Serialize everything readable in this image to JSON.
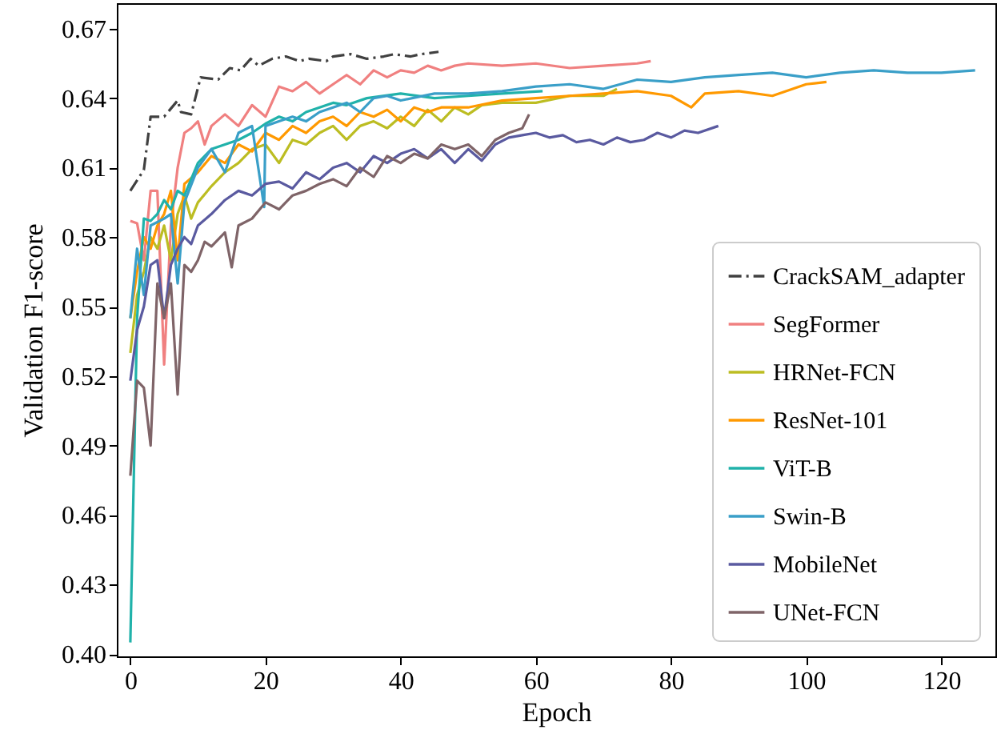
{
  "chart_data": {
    "type": "line",
    "xlabel": "Epoch",
    "ylabel": "Validation F1-score",
    "xlim": [
      -2,
      128
    ],
    "ylim": [
      0.399,
      0.681
    ],
    "xticks": [
      0,
      20,
      40,
      60,
      80,
      100,
      120
    ],
    "yticks": [
      {
        "value": 0.4,
        "label": "0.40"
      },
      0.43,
      0.46,
      0.49,
      0.52,
      0.55,
      0.58,
      0.61,
      0.64,
      0.67
    ],
    "grid": false,
    "legend": "bottom right",
    "marker": "none",
    "series": [
      {
        "name": "CrackSAM_adapter",
        "color": "#404040",
        "line_style": "dashdot",
        "x": [
          0,
          2,
          3,
          5,
          7,
          7.5,
          9,
          10.4,
          13,
          14.7,
          16.3,
          17.8,
          19,
          21,
          23,
          25,
          26.4,
          29,
          30,
          32.6,
          35,
          37.5,
          39,
          41.5,
          43,
          45.6
        ],
        "values": [
          0.6,
          0.609,
          0.632,
          0.632,
          0.639,
          0.634,
          0.633,
          0.649,
          0.648,
          0.653,
          0.652,
          0.657,
          0.654,
          0.657,
          0.658,
          0.656,
          0.657,
          0.656,
          0.658,
          0.659,
          0.657,
          0.658,
          0.659,
          0.658,
          0.659,
          0.66
        ]
      },
      {
        "name": "SegFormer",
        "color": "#f08080",
        "line_style": "solid",
        "x": [
          0,
          1,
          2,
          3,
          4,
          5,
          6,
          7,
          8,
          9,
          10,
          11,
          12,
          14,
          16,
          18,
          20,
          22,
          24,
          26,
          28,
          30,
          32,
          34,
          36,
          38,
          40,
          42,
          44,
          46,
          48,
          50,
          55,
          60,
          65,
          70,
          75,
          77
        ],
        "values": [
          0.587,
          0.586,
          0.57,
          0.6,
          0.6,
          0.525,
          0.585,
          0.61,
          0.625,
          0.627,
          0.63,
          0.62,
          0.628,
          0.633,
          0.628,
          0.637,
          0.632,
          0.645,
          0.643,
          0.647,
          0.642,
          0.646,
          0.65,
          0.646,
          0.652,
          0.649,
          0.652,
          0.651,
          0.654,
          0.652,
          0.654,
          0.655,
          0.654,
          0.655,
          0.653,
          0.654,
          0.655,
          0.656
        ]
      },
      {
        "name": "HRNet-FCN",
        "color": "#bcbd22",
        "line_style": "solid",
        "x": [
          0,
          1,
          2,
          3,
          4,
          5,
          6,
          7,
          8,
          9,
          10,
          12,
          14,
          16,
          18,
          20,
          22,
          24,
          26,
          28,
          30,
          32,
          34,
          36,
          38,
          40,
          42,
          44,
          46,
          48,
          50,
          52,
          55,
          60,
          65,
          70,
          72
        ],
        "values": [
          0.53,
          0.555,
          0.565,
          0.58,
          0.575,
          0.585,
          0.57,
          0.59,
          0.598,
          0.588,
          0.595,
          0.602,
          0.608,
          0.612,
          0.618,
          0.62,
          0.612,
          0.622,
          0.62,
          0.625,
          0.628,
          0.622,
          0.628,
          0.63,
          0.627,
          0.632,
          0.628,
          0.635,
          0.63,
          0.636,
          0.633,
          0.637,
          0.638,
          0.638,
          0.641,
          0.641,
          0.644
        ]
      },
      {
        "name": "ResNet-101",
        "color": "#ff9900",
        "line_style": "solid",
        "x": [
          0,
          1,
          2,
          3,
          4,
          5,
          6,
          7,
          8,
          10,
          12,
          14,
          16,
          18,
          20,
          22,
          24,
          26,
          28,
          30,
          32,
          34,
          36,
          38,
          40,
          42,
          44,
          46,
          50,
          55,
          60,
          65,
          70,
          75,
          80,
          83,
          85,
          90,
          95,
          100,
          103
        ],
        "values": [
          0.545,
          0.565,
          0.58,
          0.575,
          0.585,
          0.59,
          0.6,
          0.57,
          0.603,
          0.608,
          0.615,
          0.612,
          0.62,
          0.617,
          0.625,
          0.622,
          0.628,
          0.625,
          0.63,
          0.632,
          0.628,
          0.634,
          0.632,
          0.635,
          0.63,
          0.636,
          0.634,
          0.636,
          0.636,
          0.639,
          0.64,
          0.641,
          0.642,
          0.643,
          0.641,
          0.636,
          0.642,
          0.643,
          0.641,
          0.646,
          0.647
        ]
      },
      {
        "name": "ViT-B",
        "color": "#20b2aa",
        "line_style": "solid",
        "x": [
          0,
          1,
          2,
          3,
          4,
          5,
          6,
          7,
          8,
          10,
          12,
          14,
          16,
          18,
          20,
          22,
          24,
          26,
          28,
          30,
          32,
          35,
          40,
          45,
          50,
          55,
          61
        ],
        "values": [
          0.405,
          0.545,
          0.588,
          0.587,
          0.59,
          0.596,
          0.592,
          0.6,
          0.598,
          0.612,
          0.618,
          0.62,
          0.622,
          0.625,
          0.629,
          0.632,
          0.63,
          0.634,
          0.636,
          0.638,
          0.637,
          0.64,
          0.642,
          0.64,
          0.641,
          0.642,
          0.643
        ]
      },
      {
        "name": "Swin-B",
        "color": "#3a9fc8",
        "line_style": "solid",
        "x": [
          0,
          1,
          2,
          3,
          5,
          6,
          7,
          8,
          10,
          12,
          14,
          16,
          18,
          19.8,
          20,
          22,
          24,
          26,
          28,
          30,
          32,
          34,
          36,
          38,
          40,
          45,
          50,
          55,
          60,
          65,
          70,
          75,
          80,
          85,
          90,
          95,
          100,
          105,
          110,
          115,
          120,
          125
        ],
        "values": [
          0.545,
          0.575,
          0.555,
          0.585,
          0.588,
          0.59,
          0.56,
          0.595,
          0.61,
          0.618,
          0.608,
          0.625,
          0.628,
          0.593,
          0.628,
          0.63,
          0.632,
          0.63,
          0.634,
          0.636,
          0.638,
          0.634,
          0.64,
          0.641,
          0.639,
          0.642,
          0.642,
          0.643,
          0.645,
          0.646,
          0.644,
          0.648,
          0.647,
          0.649,
          0.65,
          0.651,
          0.649,
          0.651,
          0.652,
          0.651,
          0.651,
          0.652
        ]
      },
      {
        "name": "MobileNet",
        "color": "#5a5aa0",
        "line_style": "solid",
        "x": [
          0,
          1,
          2,
          3,
          4,
          5,
          6,
          7,
          8,
          9,
          10,
          12,
          14,
          16,
          18,
          20,
          22,
          24,
          26,
          28,
          30,
          32,
          34,
          36,
          38,
          40,
          42,
          44,
          46,
          48,
          50,
          52,
          54,
          56,
          58,
          60,
          62,
          64,
          66,
          68,
          70,
          72,
          74,
          76,
          78,
          80,
          82,
          84,
          87
        ],
        "values": [
          0.518,
          0.54,
          0.55,
          0.568,
          0.57,
          0.545,
          0.568,
          0.575,
          0.58,
          0.577,
          0.585,
          0.59,
          0.596,
          0.6,
          0.598,
          0.603,
          0.604,
          0.601,
          0.608,
          0.605,
          0.61,
          0.612,
          0.608,
          0.615,
          0.612,
          0.616,
          0.618,
          0.614,
          0.618,
          0.612,
          0.618,
          0.613,
          0.62,
          0.623,
          0.624,
          0.625,
          0.623,
          0.624,
          0.621,
          0.622,
          0.62,
          0.623,
          0.621,
          0.622,
          0.625,
          0.623,
          0.626,
          0.625,
          0.628
        ]
      },
      {
        "name": "UNet-FCN",
        "color": "#7f6468",
        "line_style": "solid",
        "x": [
          0,
          1,
          2,
          3,
          4,
          5,
          6,
          7,
          8,
          9,
          10,
          11,
          12,
          14,
          15,
          16,
          18,
          20,
          22,
          24,
          26,
          28,
          30,
          32,
          34,
          36,
          38,
          40,
          42,
          44,
          46,
          48,
          50,
          52,
          54,
          56,
          58,
          59
        ],
        "values": [
          0.477,
          0.518,
          0.515,
          0.49,
          0.56,
          0.545,
          0.56,
          0.512,
          0.568,
          0.565,
          0.57,
          0.578,
          0.576,
          0.582,
          0.567,
          0.585,
          0.588,
          0.595,
          0.592,
          0.598,
          0.6,
          0.603,
          0.605,
          0.602,
          0.61,
          0.606,
          0.615,
          0.612,
          0.616,
          0.614,
          0.62,
          0.618,
          0.62,
          0.615,
          0.622,
          0.625,
          0.627,
          0.633
        ]
      }
    ]
  }
}
